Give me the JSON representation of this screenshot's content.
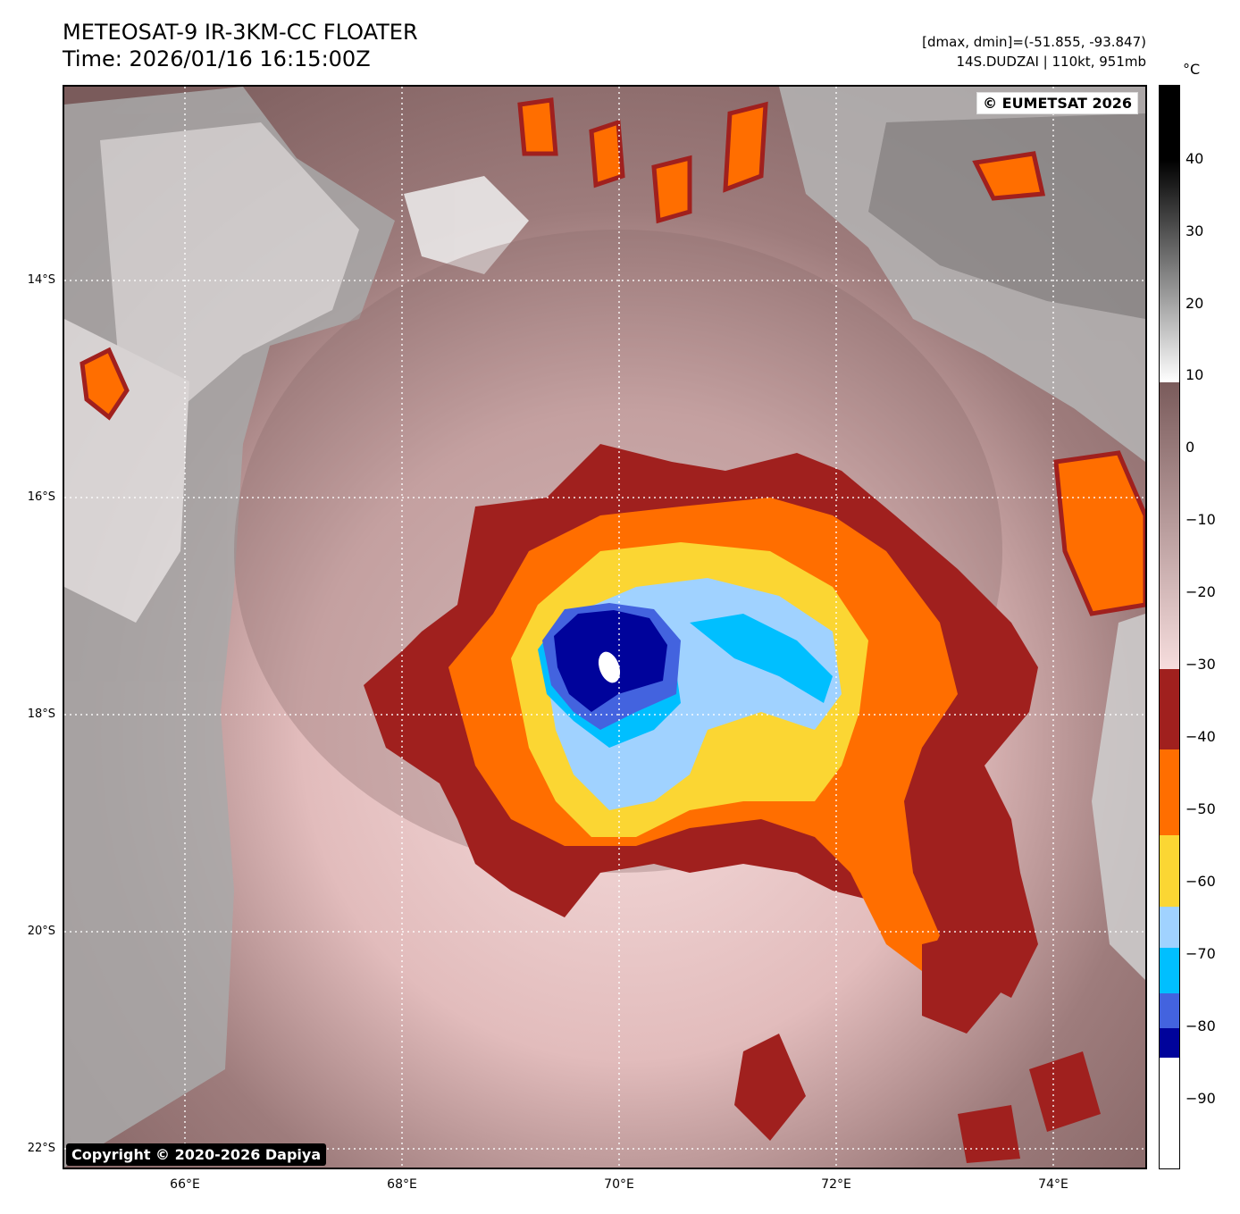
{
  "title": {
    "line1": "METEOSAT-9 IR-3KM-CC FLOATER",
    "line2": "Time: 2026/01/16 16:15:00Z"
  },
  "info": {
    "range": "[dmax, dmin]=(-51.855, -93.847)",
    "storm": "14S.DUDZAI | 110kt, 951mb"
  },
  "watermarks": {
    "eumetsat": "© EUMETSAT 2026",
    "copyright": "Copyright © 2020-2026 Dapiya"
  },
  "map": {
    "lat_labels": [
      "14°S",
      "16°S",
      "18°S",
      "20°S",
      "22°S"
    ],
    "lon_labels": [
      "66°E",
      "68°E",
      "70°E",
      "72°E",
      "74°E"
    ]
  },
  "colorbar": {
    "unit": "°C",
    "ticks": [
      "40",
      "30",
      "20",
      "10",
      "0",
      "−10",
      "−20",
      "−30",
      "−40",
      "−50",
      "−60",
      "−70",
      "−80",
      "−90"
    ],
    "colors": {
      "dark_red": "#a0201e",
      "orange": "#ff6e00",
      "yellow": "#fbd633",
      "light_blue": "#a0d2ff",
      "cyan": "#00bfff",
      "royal_blue": "#4363df",
      "navy": "#00039b",
      "eye_white": "#ffffff",
      "warm_brown": "#7f5f5f",
      "pale_pink": "#f3d6d6"
    }
  }
}
